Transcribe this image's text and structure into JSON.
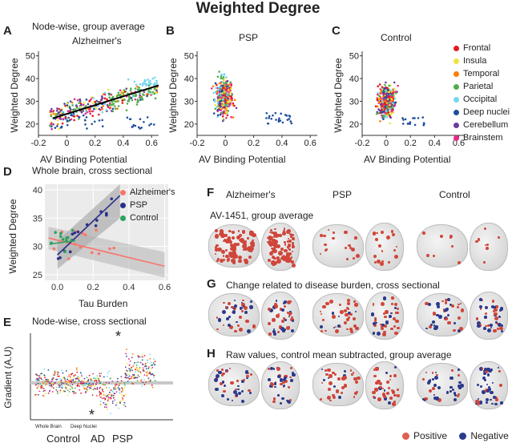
{
  "figure_title": "Weighted Degree",
  "panels": {
    "A": {
      "letter": "A",
      "header": "Node-wise, group average",
      "subtitle": "Alzheimer's"
    },
    "B": {
      "letter": "B",
      "subtitle": "PSP"
    },
    "C": {
      "letter": "C",
      "subtitle": "Control"
    },
    "D": {
      "letter": "D",
      "header": "Whole brain, cross sectional"
    },
    "E": {
      "letter": "E",
      "header": "Node-wise, cross sectional"
    },
    "F": {
      "letter": "F",
      "caption": "AV-1451, group average"
    },
    "G": {
      "letter": "G",
      "caption": "Change related to disease burden, cross sectional"
    },
    "H": {
      "letter": "H",
      "caption": "Raw values, control mean subtracted, group average"
    }
  },
  "brain_columns": [
    "Alzheimer's",
    "PSP",
    "Control"
  ],
  "scatter_axes": {
    "xlabel": "AV Binding Potential",
    "ylabel": "Weighted Degree",
    "xticks": [
      "-0.2",
      "0",
      "0.2",
      "0.4",
      "0.6"
    ],
    "yticks": [
      "20",
      "30",
      "40",
      "50"
    ]
  },
  "region_legend": [
    {
      "label": "Frontal",
      "color": "#e41a1c"
    },
    {
      "label": "Insula",
      "color": "#f0e442"
    },
    {
      "label": "Temporal",
      "color": "#ff7f00"
    },
    {
      "label": "Parietal",
      "color": "#4daf4a"
    },
    {
      "label": "Occipital",
      "color": "#74d7f0"
    },
    {
      "label": "Deep nuclei",
      "color": "#1f4e9e"
    },
    {
      "label": "Cerebellum",
      "color": "#6a3d9a"
    },
    {
      "label": "Brainstem",
      "color": "#e7298a"
    }
  ],
  "panel_d": {
    "xlabel": "Tau Burden",
    "ylabel": "Weighted Degree",
    "xticks": [
      "0.0",
      "0.2",
      "0.4",
      "0.6"
    ],
    "yticks": [
      "25",
      "30",
      "35",
      "40"
    ],
    "legend": [
      {
        "label": "Alzheimer's",
        "color": "#f8766d"
      },
      {
        "label": "PSP",
        "color": "#2b2e8c"
      },
      {
        "label": "Control",
        "color": "#2ca25f"
      }
    ]
  },
  "panel_e": {
    "ylabel": "Gradient (A.U)",
    "group_labels": [
      "Control",
      "AD",
      "PSP"
    ],
    "sublabels": [
      "Whole Brain",
      "Deep Nuclei"
    ],
    "markers": [
      "*",
      "*"
    ]
  },
  "sign_legend": [
    {
      "label": "Positive",
      "color": "#e06050"
    },
    {
      "label": "Negative",
      "color": "#2b3a8c"
    }
  ],
  "chart_data": [
    {
      "type": "scatter",
      "title": "Alzheimer's",
      "xlabel": "AV Binding Potential",
      "ylabel": "Weighted Degree",
      "xlim": [
        -0.2,
        0.65
      ],
      "ylim": [
        15,
        52
      ],
      "fit_line": {
        "x": [
          -0.1,
          0.65
        ],
        "y": [
          22.5,
          37
        ]
      }
    },
    {
      "type": "scatter",
      "title": "PSP",
      "xlabel": "AV Binding Potential",
      "ylabel": "Weighted Degree",
      "xlim": [
        -0.2,
        0.65
      ],
      "ylim": [
        15,
        52
      ]
    },
    {
      "type": "scatter",
      "title": "Control",
      "xlabel": "AV Binding Potential",
      "ylabel": "Weighted Degree",
      "xlim": [
        -0.2,
        0.65
      ],
      "ylim": [
        15,
        52
      ]
    },
    {
      "type": "scatter",
      "title": "Whole brain, cross sectional",
      "xlabel": "Tau Burden",
      "ylabel": "Weighted Degree",
      "xlim": [
        -0.07,
        0.62
      ],
      "ylim": [
        24,
        41
      ],
      "fits": [
        {
          "name": "Alzheimer's",
          "x": [
            -0.05,
            0.6
          ],
          "y": [
            31.5,
            26.5
          ]
        },
        {
          "name": "PSP",
          "x": [
            0.0,
            0.35
          ],
          "y": [
            28.5,
            39
          ]
        },
        {
          "name": "Control",
          "x": [
            -0.03,
            0.1
          ],
          "y": [
            30.5,
            31
          ]
        }
      ]
    }
  ]
}
